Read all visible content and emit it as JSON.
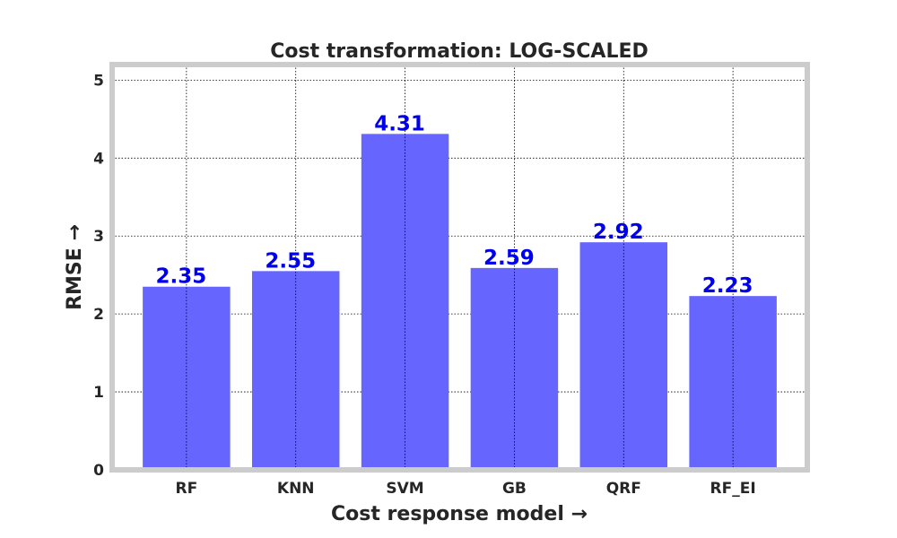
{
  "chart_data": {
    "type": "bar",
    "title": "Cost transformation: LOG-SCALED",
    "xlabel": "Cost response model →",
    "ylabel": "RMSE →",
    "categories": [
      "RF",
      "KNN",
      "SVM",
      "GB",
      "QRF",
      "RF_EI"
    ],
    "values": [
      2.35,
      2.55,
      4.31,
      2.59,
      2.92,
      2.23
    ],
    "data_labels": [
      "2.35",
      "2.55",
      "4.31",
      "2.59",
      "2.92",
      "2.23"
    ],
    "ylim": [
      0,
      5.2
    ],
    "yticks": [
      0,
      1,
      2,
      3,
      4,
      5
    ],
    "ytick_labels": [
      "0",
      "1",
      "2",
      "3",
      "4",
      "5"
    ],
    "grid": true,
    "legend": "none",
    "colors": {
      "bar": "#6666ff",
      "data_label": "#0000ee",
      "frame": "#cccccc",
      "text": "#262626"
    }
  }
}
